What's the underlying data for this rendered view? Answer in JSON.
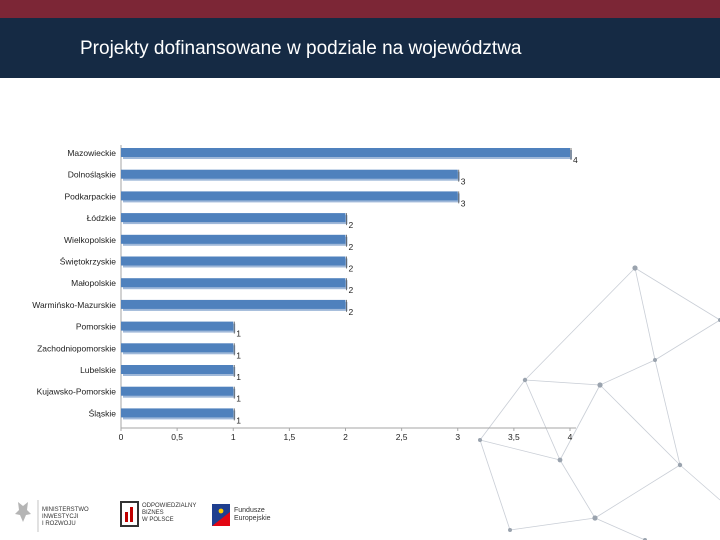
{
  "title": "Projekty dofinansowane w podziale na województwa",
  "colors": {
    "header": "#152a44",
    "accent": "#7c2636",
    "bar": "#4f81bd",
    "bar_edge": "#9fb8d9"
  },
  "logos": {
    "ministerstwo": [
      "MINISTERSTWO",
      "INWESTYCJI",
      "I ROZWOJU"
    ],
    "odpowiedzialny": [
      "ODPOWIEDZIALNY",
      "BIZNES",
      "W POLSCE"
    ],
    "fundusze": [
      "Fundusze",
      "Europejskie"
    ]
  },
  "chart_data": {
    "type": "bar",
    "orientation": "horizontal",
    "categories": [
      "Mazowieckie",
      "Dolnośląskie",
      "Podkarpackie",
      "Łódzkie",
      "Wielkopolskie",
      "Świętokrzyskie",
      "Małopolskie",
      "Warmińsko-Mazurskie",
      "Pomorskie",
      "Zachodniopomorskie",
      "Lubelskie",
      "Kujawsko-Pomorskie",
      "Śląskie"
    ],
    "values": [
      4,
      3,
      3,
      2,
      2,
      2,
      2,
      2,
      1,
      1,
      1,
      1,
      1
    ],
    "data_labels": [
      "4",
      "3",
      "3",
      "2",
      "2",
      "2",
      "2",
      "2",
      "1",
      "1",
      "1",
      "1",
      "1"
    ],
    "xticks": [
      "0",
      "0,5",
      "1",
      "1,5",
      "2",
      "2,5",
      "3",
      "3,5",
      "4"
    ],
    "xlim": [
      0,
      4
    ],
    "grid": false,
    "legend": "none"
  }
}
